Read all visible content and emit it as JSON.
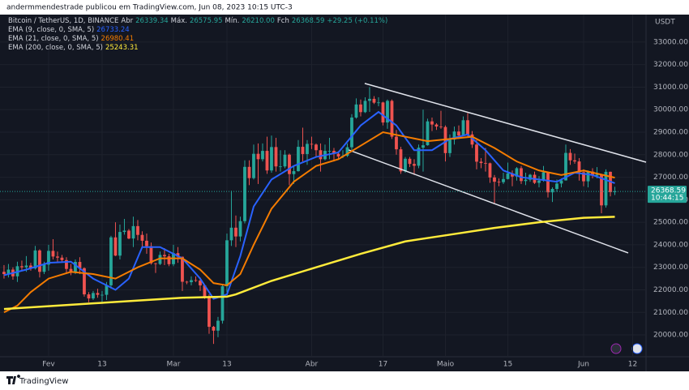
{
  "publisher": "andermmendestrade publicou em TradingView.com, Jun 08, 2023 10:15 UTC-3",
  "brand": "TradingView",
  "header": {
    "symbol": "Bitcoin / TetherUS, 1D, BINANCE",
    "open_label": "Abr",
    "open": "26339.34",
    "high_label": "Máx.",
    "high": "26575.95",
    "low_label": "Mín.",
    "low": "26210.00",
    "close_label": "Fch",
    "close": "26368.59",
    "change": "+29.25 (+0.11%)"
  },
  "chart_data": {
    "type": "candlestick",
    "currency": "USDT",
    "countdown": "10:44:15",
    "up_color": "#26a69a",
    "down_color": "#ef5350",
    "grid": true,
    "xlim": [
      -0.9,
      144
    ],
    "ylim": [
      19030,
      34220
    ],
    "xticks": [
      {
        "value": 10,
        "label": "Fev"
      },
      {
        "value": 22,
        "label": "13"
      },
      {
        "value": 38,
        "label": "Mar"
      },
      {
        "value": 50,
        "label": "13"
      },
      {
        "value": 69,
        "label": "Abr"
      },
      {
        "value": 85,
        "label": "17"
      },
      {
        "value": 99,
        "label": "Maio"
      },
      {
        "value": 113,
        "label": "15"
      },
      {
        "value": 130,
        "label": "Jun"
      },
      {
        "value": 141,
        "label": "12"
      }
    ],
    "yticks": [
      {
        "value": 20000,
        "label": "20000.00"
      },
      {
        "value": 21000,
        "label": "21000.00"
      },
      {
        "value": 22000,
        "label": "22000.00"
      },
      {
        "value": 23000,
        "label": "23000.00"
      },
      {
        "value": 24000,
        "label": "24000.00"
      },
      {
        "value": 25000,
        "label": "25000.00"
      },
      {
        "value": 26000,
        "label": "26000.00"
      },
      {
        "value": 27000,
        "label": "27000.00"
      },
      {
        "value": 28000,
        "label": "28000.00"
      },
      {
        "value": 29000,
        "label": "29000.00"
      },
      {
        "value": 30000,
        "label": "30000.00"
      },
      {
        "value": 31000,
        "label": "31000.00"
      },
      {
        "value": 32000,
        "label": "32000.00"
      },
      {
        "value": 33000,
        "label": "33000.00"
      }
    ],
    "ohlc": [
      [
        22800,
        23100,
        22500,
        22700
      ],
      [
        22700,
        23150,
        22550,
        22900
      ],
      [
        22900,
        23000,
        22450,
        22600
      ],
      [
        22600,
        23250,
        22350,
        23050
      ],
      [
        23050,
        23300,
        22850,
        23000
      ],
      [
        23000,
        23500,
        22800,
        23080
      ],
      [
        23080,
        23200,
        22850,
        22950
      ],
      [
        22950,
        23950,
        22900,
        23750
      ],
      [
        23750,
        23800,
        22550,
        22800
      ],
      [
        22800,
        23250,
        22700,
        23120
      ],
      [
        23120,
        24000,
        22850,
        23730
      ],
      [
        23730,
        24250,
        23350,
        23480
      ],
      [
        23480,
        23700,
        23250,
        23430
      ],
      [
        23430,
        23550,
        23250,
        23320
      ],
      [
        23320,
        23450,
        22750,
        22930
      ],
      [
        22930,
        23150,
        22650,
        22760
      ],
      [
        22760,
        23350,
        22700,
        23240
      ],
      [
        23240,
        23450,
        22700,
        22960
      ],
      [
        22960,
        23000,
        21700,
        21800
      ],
      [
        21800,
        21900,
        21450,
        21620
      ],
      [
        21620,
        21950,
        21550,
        21860
      ],
      [
        21860,
        22050,
        21650,
        21780
      ],
      [
        21780,
        21950,
        21400,
        21780
      ],
      [
        21780,
        22350,
        21550,
        22200
      ],
      [
        22200,
        24400,
        22050,
        24330
      ],
      [
        24330,
        25000,
        23500,
        23520
      ],
      [
        23520,
        24900,
        23350,
        24570
      ],
      [
        24570,
        25150,
        24450,
        24630
      ],
      [
        24630,
        24700,
        24250,
        24280
      ],
      [
        24280,
        25250,
        23900,
        24830
      ],
      [
        24830,
        25100,
        24200,
        24440
      ],
      [
        24440,
        24600,
        23900,
        24180
      ],
      [
        24180,
        24500,
        23600,
        23940
      ],
      [
        23940,
        24100,
        23120,
        23180
      ],
      [
        23180,
        23200,
        22750,
        23150
      ],
      [
        23150,
        23700,
        23100,
        23550
      ],
      [
        23550,
        23850,
        23100,
        23490
      ],
      [
        23490,
        23600,
        23050,
        23140
      ],
      [
        23140,
        24000,
        23050,
        23630
      ],
      [
        23630,
        23900,
        23200,
        23470
      ],
      [
        23470,
        23480,
        21950,
        22360
      ],
      [
        22360,
        22400,
        22250,
        22340
      ],
      [
        22340,
        22600,
        22200,
        22430
      ],
      [
        22430,
        22600,
        22350,
        22410
      ],
      [
        22410,
        22550,
        21950,
        22200
      ],
      [
        22200,
        22250,
        21600,
        21700
      ],
      [
        21700,
        21800,
        20050,
        20360
      ],
      [
        20360,
        20400,
        19600,
        20190
      ],
      [
        20190,
        20800,
        19900,
        20630
      ],
      [
        20630,
        22200,
        20500,
        22160
      ],
      [
        22160,
        24500,
        21900,
        24200
      ],
      [
        24200,
        26400,
        23950,
        24760
      ],
      [
        24760,
        25300,
        23900,
        24370
      ],
      [
        24370,
        25250,
        24150,
        25050
      ],
      [
        25050,
        27750,
        24950,
        27460
      ],
      [
        27460,
        27750,
        26650,
        26960
      ],
      [
        26960,
        28450,
        26900,
        28040
      ],
      [
        28040,
        28500,
        26700,
        27800
      ],
      [
        27800,
        28500,
        27700,
        28170
      ],
      [
        28170,
        28800,
        27150,
        27300
      ],
      [
        27300,
        28850,
        27200,
        28340
      ],
      [
        28340,
        28750,
        27250,
        27480
      ],
      [
        27480,
        28200,
        27250,
        27480
      ],
      [
        27480,
        28200,
        27400,
        28000
      ],
      [
        28000,
        28050,
        26650,
        27140
      ],
      [
        27140,
        27500,
        26700,
        27270
      ],
      [
        27270,
        28650,
        27250,
        28350
      ],
      [
        28350,
        29200,
        27700,
        28030
      ],
      [
        28030,
        28650,
        27550,
        28480
      ],
      [
        28480,
        28800,
        28250,
        28450
      ],
      [
        28450,
        28500,
        27900,
        28200
      ],
      [
        28200,
        28500,
        27250,
        27800
      ],
      [
        27800,
        28450,
        27750,
        28170
      ],
      [
        28170,
        28750,
        27800,
        28170
      ],
      [
        28170,
        28300,
        27700,
        28040
      ],
      [
        28040,
        28150,
        27800,
        27920
      ],
      [
        27920,
        28200,
        27850,
        27950
      ],
      [
        27950,
        28500,
        27900,
        28330
      ],
      [
        28330,
        29800,
        28200,
        29650
      ],
      [
        29650,
        30500,
        29600,
        30230
      ],
      [
        30230,
        30450,
        29700,
        29890
      ],
      [
        29890,
        30550,
        29850,
        30390
      ],
      [
        30390,
        31000,
        29900,
        30480
      ],
      [
        30480,
        30600,
        30250,
        30310
      ],
      [
        30310,
        30550,
        30150,
        30320
      ],
      [
        30320,
        30350,
        29300,
        29430
      ],
      [
        29430,
        30450,
        29150,
        30390
      ],
      [
        30390,
        30450,
        28700,
        28800
      ],
      [
        28800,
        29100,
        28000,
        28240
      ],
      [
        28240,
        28350,
        27150,
        27260
      ],
      [
        27260,
        27900,
        27200,
        27820
      ],
      [
        27820,
        27900,
        27450,
        27590
      ],
      [
        27590,
        27800,
        27100,
        27510
      ],
      [
        27510,
        28450,
        27400,
        28310
      ],
      [
        28310,
        30000,
        27250,
        28420
      ],
      [
        28420,
        29600,
        28400,
        29480
      ],
      [
        29480,
        29650,
        29050,
        29340
      ],
      [
        29340,
        29400,
        29100,
        29250
      ],
      [
        29250,
        29950,
        29150,
        29230
      ],
      [
        29230,
        29300,
        27700,
        28070
      ],
      [
        28070,
        28900,
        27900,
        28670
      ],
      [
        28670,
        29250,
        28450,
        29030
      ],
      [
        29030,
        29300,
        28700,
        28850
      ],
      [
        28850,
        29700,
        28850,
        29530
      ],
      [
        29530,
        29850,
        28800,
        28900
      ],
      [
        28900,
        29050,
        28300,
        28450
      ],
      [
        28450,
        28650,
        27350,
        27690
      ],
      [
        27690,
        27850,
        27400,
        27630
      ],
      [
        27630,
        28300,
        27250,
        27620
      ],
      [
        27620,
        27650,
        26750,
        26990
      ],
      [
        26990,
        27100,
        25800,
        26800
      ],
      [
        26800,
        26950,
        26600,
        26780
      ],
      [
        26780,
        27200,
        26700,
        26920
      ],
      [
        26920,
        27650,
        26900,
        27170
      ],
      [
        27170,
        27300,
        26600,
        27030
      ],
      [
        27030,
        27450,
        26850,
        27400
      ],
      [
        27400,
        27500,
        26700,
        26830
      ],
      [
        26830,
        27200,
        26650,
        26890
      ],
      [
        26890,
        27150,
        26800,
        27110
      ],
      [
        27110,
        27250,
        26700,
        26750
      ],
      [
        26750,
        27050,
        26550,
        26850
      ],
      [
        26850,
        27500,
        26800,
        27220
      ],
      [
        27220,
        27250,
        26100,
        26330
      ],
      [
        26330,
        26550,
        25900,
        26480
      ],
      [
        26480,
        26900,
        26350,
        26720
      ],
      [
        26720,
        26950,
        26550,
        26860
      ],
      [
        26860,
        28450,
        26850,
        28080
      ],
      [
        28080,
        28250,
        27550,
        27750
      ],
      [
        27750,
        28050,
        27600,
        27700
      ],
      [
        27700,
        27850,
        26850,
        27220
      ],
      [
        27220,
        27350,
        26600,
        26820
      ],
      [
        26820,
        27300,
        26550,
        27250
      ],
      [
        27250,
        27400,
        26950,
        27070
      ],
      [
        27070,
        27450,
        26950,
        27120
      ],
      [
        27120,
        27150,
        25400,
        25750
      ],
      [
        25750,
        27350,
        25650,
        27240
      ],
      [
        27240,
        27250,
        26150,
        26339.34
      ],
      [
        26339.34,
        26575.95,
        26210,
        26368.59
      ]
    ],
    "series": [
      {
        "name": "EMA (9, close, 0, SMA, 5)",
        "color": "#2962ff",
        "x": [
          0,
          5,
          10,
          15,
          20,
          25,
          28,
          31,
          35,
          40,
          44,
          47,
          50,
          53,
          56,
          60,
          65,
          70,
          75,
          80,
          84,
          88,
          92,
          96,
          100,
          104,
          108,
          112,
          116,
          120,
          124,
          128,
          132,
          137
        ],
        "values": [
          22650,
          22900,
          23200,
          23250,
          22500,
          22000,
          22500,
          23900,
          23900,
          23400,
          22500,
          21600,
          21800,
          23500,
          25700,
          26900,
          27500,
          27900,
          28100,
          29300,
          29900,
          29300,
          28200,
          28200,
          28700,
          28900,
          28200,
          27300,
          27000,
          26900,
          26800,
          27200,
          27100,
          26733.24
        ]
      },
      {
        "name": "EMA (21, close, 0, SMA, 5)",
        "color": "#f57c00",
        "x": [
          0,
          3,
          6,
          10,
          15,
          20,
          25,
          30,
          35,
          40,
          44,
          47,
          50,
          53,
          56,
          60,
          65,
          70,
          75,
          80,
          85,
          90,
          95,
          100,
          105,
          110,
          115,
          120,
          125,
          130,
          137
        ],
        "values": [
          21000,
          21300,
          21900,
          22500,
          22800,
          22700,
          22500,
          23000,
          23400,
          23400,
          22900,
          22300,
          22200,
          22700,
          24000,
          25600,
          26800,
          27500,
          27800,
          28400,
          29000,
          28800,
          28600,
          28700,
          28800,
          28300,
          27700,
          27300,
          27100,
          27300,
          26980.41
        ]
      },
      {
        "name": "EMA (200, close, 0, SMA, 5)",
        "color": "#ffeb3b",
        "x": [
          0,
          20,
          40,
          50,
          52,
          60,
          70,
          80,
          90,
          100,
          110,
          120,
          130,
          137
        ],
        "values": [
          21150,
          21400,
          21650,
          21700,
          21800,
          22400,
          23000,
          23600,
          24150,
          24450,
          24750,
          25000,
          25200,
          25243.31
        ]
      }
    ],
    "trendlines": [
      {
        "x": [
          80.9,
          144
        ],
        "y": [
          31164,
          27670
        ]
      },
      {
        "x": [
          77.3,
          140
        ],
        "y": [
          28210,
          23640
        ]
      }
    ]
  }
}
